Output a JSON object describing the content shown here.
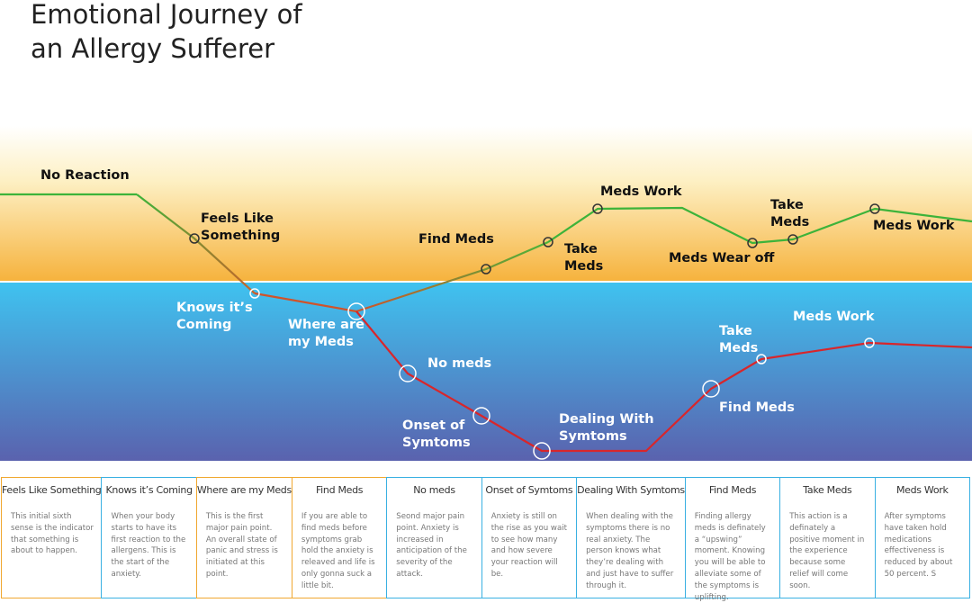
{
  "title": {
    "lines": [
      "Emotional Journey of",
      "an Allergy Sufferer"
    ]
  },
  "labels": [
    {
      "lines": [
        "No Reaction"
      ]
    },
    {
      "lines": [
        "Feels Like",
        "Something"
      ]
    },
    {
      "lines": [
        "Find Meds"
      ]
    },
    {
      "lines": [
        "Meds Work"
      ]
    },
    {
      "lines": [
        "Take",
        "Meds"
      ]
    },
    {
      "lines": [
        "Meds Wear off"
      ]
    },
    {
      "lines": [
        "Take",
        "Meds"
      ]
    },
    {
      "lines": [
        "Meds Work"
      ]
    },
    {
      "lines": [
        "Knows it’s",
        "Coming"
      ]
    },
    {
      "lines": [
        "Where are",
        "my Meds"
      ]
    },
    {
      "lines": [
        "No meds"
      ]
    },
    {
      "lines": [
        "Onset of",
        "Symtoms"
      ]
    },
    {
      "lines": [
        "Dealing With",
        "Symtoms"
      ]
    },
    {
      "lines": [
        "Take",
        "Meds"
      ]
    },
    {
      "lines": [
        "Meds Work"
      ]
    },
    {
      "lines": [
        "Find Meds"
      ]
    }
  ],
  "table": {
    "columns": [
      {
        "header": "Feels Like Something",
        "text": "This initial sixth sense is the indicator that something is about to happen."
      },
      {
        "header": "Knows it’s Coming",
        "text": "When your body starts to have its first reaction to the allergens.  This is the start of the anxiety."
      },
      {
        "header": "Where are my Meds",
        "text": "This is the first major pain point. An overall state of panic and stress is initiated at this point."
      },
      {
        "header": "Find Meds",
        "text": "If you are able to find meds before symptoms grab hold the anxiety is releaved and life is only gonna suck a little bit."
      },
      {
        "header": "No meds",
        "text": "Seond major pain point.  Anxiety is increased in anticipation of the severity of the attack."
      },
      {
        "header": "Onset of Symtoms",
        "text": "Anxiety is still on the rise as you wait to see how many and how severe your reaction will be."
      },
      {
        "header": "Dealing With Symtoms",
        "text": "When dealing with the symptoms there is no real anxiety. The person knows what they’re dealing with and just have to suffer through it."
      },
      {
        "header": "Find Meds",
        "text": "Finding allergy meds is definately a “upswing” moment. Knowing you will be able to alleviate some of the symptoms is uplifting."
      },
      {
        "header": "Take Meds",
        "text": "This action is a definately a positive moment in the experience because some relief will come soon."
      },
      {
        "header": "Meds Work",
        "text": "After symptoms have taken hold medications effectiveness is reduced by about 50 percent. S"
      }
    ]
  }
}
